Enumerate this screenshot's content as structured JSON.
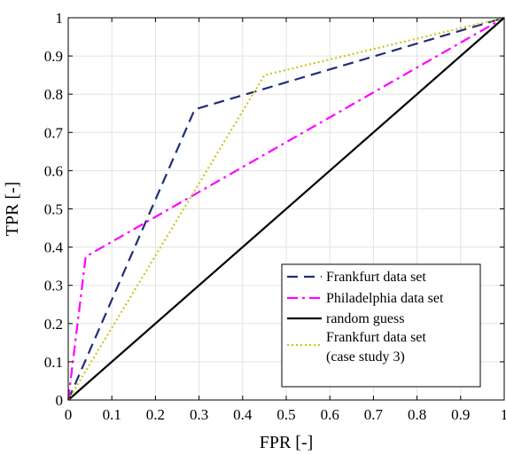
{
  "chart_data": {
    "type": "line",
    "title": "",
    "xlabel": "FPR [-]",
    "ylabel": "TPR [-]",
    "xlim": [
      0,
      1
    ],
    "ylim": [
      0,
      1
    ],
    "grid": true,
    "legend_position": "bottom-right",
    "xticks": [
      0,
      0.1,
      0.2,
      0.3,
      0.4,
      0.5,
      0.6,
      0.7,
      0.8,
      0.9,
      1
    ],
    "xtick_labels": [
      "0",
      "0.1",
      "0.2",
      "0.3",
      "0.4",
      "0.5",
      "0.6",
      "0.7",
      "0.8",
      "0.9",
      "1"
    ],
    "yticks": [
      0,
      0.1,
      0.2,
      0.3,
      0.4,
      0.5,
      0.6,
      0.7,
      0.8,
      0.9,
      1
    ],
    "ytick_labels": [
      "0",
      "0.1",
      "0.2",
      "0.3",
      "0.4",
      "0.5",
      "0.6",
      "0.7",
      "0.8",
      "0.9",
      "1"
    ],
    "series": [
      {
        "name": "Frankfurt data set",
        "color": "#1f2d7a",
        "style": "dashed",
        "x": [
          0,
          0.29,
          1
        ],
        "y": [
          0,
          0.76,
          1
        ]
      },
      {
        "name": "Philadelphia data set",
        "color": "#ff00ff",
        "style": "dashdot",
        "x": [
          0,
          0.04,
          1
        ],
        "y": [
          0,
          0.375,
          1
        ]
      },
      {
        "name": "random guess",
        "color": "#000000",
        "style": "solid",
        "x": [
          0,
          1
        ],
        "y": [
          0,
          1
        ]
      },
      {
        "name": "Frankfurt data set (case study 3)",
        "legend_lines": [
          "Frankfurt data set",
          "(case study 3)"
        ],
        "color": "#c8c81e",
        "style": "dotted",
        "x": [
          0,
          0.45,
          1
        ],
        "y": [
          0,
          0.85,
          1
        ]
      }
    ]
  }
}
